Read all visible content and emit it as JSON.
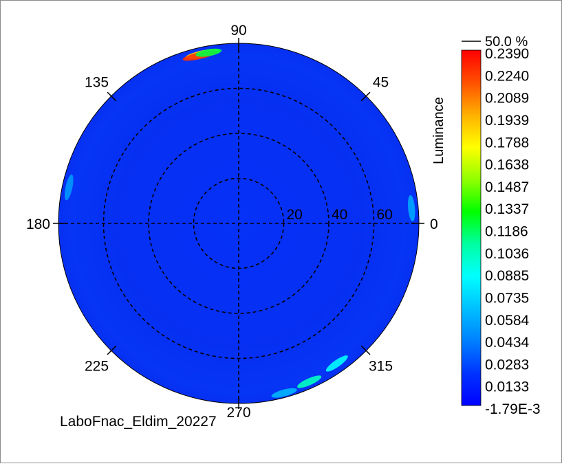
{
  "chart_data": {
    "type": "polar-heatmap",
    "angle_labels": [
      "0",
      "45",
      "90",
      "135",
      "180",
      "225",
      "270",
      "315"
    ],
    "angle_values": [
      0,
      45,
      90,
      135,
      180,
      225,
      270,
      315
    ],
    "radial_max": 80,
    "radial_ticks": [
      20,
      40,
      60
    ],
    "radial_tick_labels": [
      "20",
      "40",
      "60"
    ],
    "colorbar": {
      "title": "Luminance",
      "top_label": "50.0 %",
      "min": -0.00179,
      "max": 0.239,
      "tick_labels": [
        "0.2390",
        "0.2240",
        "0.2089",
        "0.1939",
        "0.1788",
        "0.1638",
        "0.1487",
        "0.1337",
        "0.1186",
        "0.1036",
        "0.0885",
        "0.0735",
        "0.0584",
        "0.0434",
        "0.0283",
        "0.0133",
        "-1.79E-3"
      ],
      "colors": [
        "#0000ff",
        "#0033ff",
        "#0080ff",
        "#00c0ff",
        "#00ffff",
        "#00ffa0",
        "#00ff00",
        "#90ff00",
        "#ffff00",
        "#ffb000",
        "#ff5000",
        "#ff0000"
      ]
    },
    "background_value": 0.013,
    "hotspots": [
      {
        "angle": 102,
        "radius": 77,
        "value": 0.185
      },
      {
        "angle": 103,
        "radius": 76.5,
        "value": 0.225
      },
      {
        "angle": 100,
        "radius": 77,
        "value": 0.12
      },
      {
        "angle": 294,
        "radius": 77,
        "value": 0.1
      },
      {
        "angle": 305,
        "radius": 76,
        "value": 0.085
      },
      {
        "angle": 285,
        "radius": 78,
        "value": 0.06
      },
      {
        "angle": 5,
        "radius": 77,
        "value": 0.055
      },
      {
        "angle": 168,
        "radius": 77,
        "value": 0.05
      }
    ],
    "footer_label": "LaboFnac_Eldim_20227"
  }
}
